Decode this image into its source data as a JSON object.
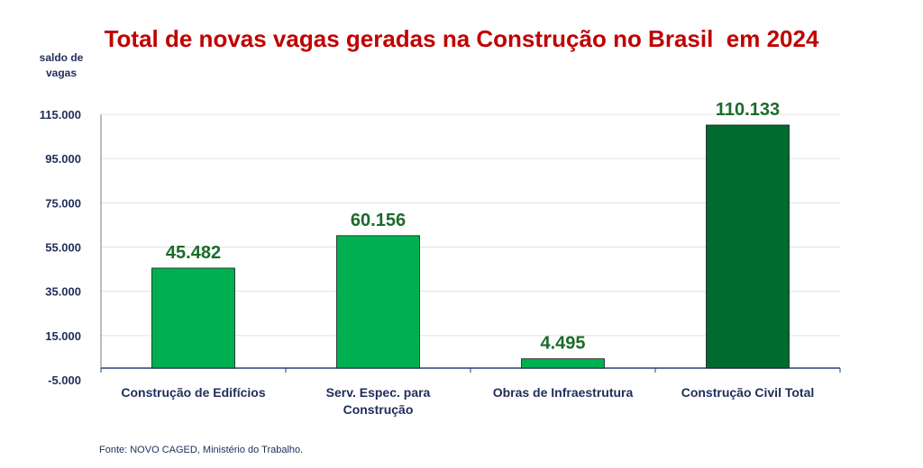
{
  "chart_data": {
    "type": "bar",
    "title": "Total de novas vagas geradas na Construção no Brasil  em 2024",
    "ylabel": "saldo de vagas",
    "xlabel": "",
    "categories": [
      "Construção de Edifícios",
      "Serv. Espec. para Construção",
      "Obras de Infraestrutura",
      "Construção Civil Total"
    ],
    "category_lines": [
      [
        "Construção de Edifícios"
      ],
      [
        "Serv. Espec. para",
        "Construção"
      ],
      [
        "Obras de Infraestrutura"
      ],
      [
        "Construção Civil Total"
      ]
    ],
    "values": [
      45482,
      60156,
      4495,
      110133
    ],
    "data_labels": [
      "45.482",
      "60.156",
      "4.495",
      "110.133"
    ],
    "yticks": [
      -5000,
      15000,
      35000,
      55000,
      75000,
      95000,
      115000
    ],
    "ytick_labels": [
      "-5.000",
      "15.000",
      "35.000",
      "55.000",
      "75.000",
      "95.000",
      "115.000"
    ],
    "ylim": [
      -5000,
      115000
    ],
    "grid": true,
    "bar_colors": [
      "#00b050",
      "#00b050",
      "#00b050",
      "#006b2e"
    ]
  },
  "source": "Fonte: NOVO CAGED, Ministério  do Trabalho."
}
